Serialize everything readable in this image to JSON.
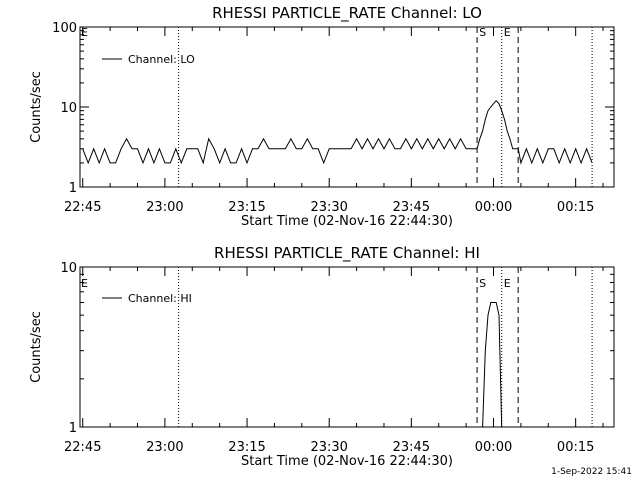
{
  "footer": {
    "timestamp": "1-Sep-2022 15:41"
  },
  "chart_data": [
    {
      "type": "line",
      "title": "RHESSI PARTICLE_RATE Channel: LO",
      "xlabel": "Start Time (02-Nov-16 22:44:30)",
      "ylabel": "Counts/sec",
      "yscale": "log",
      "ylim": [
        1,
        100
      ],
      "ytick_values": [
        1,
        10,
        100
      ],
      "ytick_labels": [
        "1",
        "10",
        "100"
      ],
      "xlim": [
        "22:44:30",
        "00:22:00"
      ],
      "xtick_values": [
        "22:45",
        "23:00",
        "23:15",
        "23:30",
        "23:45",
        "00:00",
        "00:15"
      ],
      "xtick_labels": [
        "22:45",
        "23:00",
        "23:15",
        "23:30",
        "23:45",
        "00:00",
        "00:15"
      ],
      "legend": {
        "label": "Channel: LO",
        "placement": "top-left"
      },
      "markers": [
        {
          "label": "E",
          "time": "22:44:30",
          "style": "none"
        },
        {
          "label": "",
          "time": "23:02:30",
          "style": "dotted"
        },
        {
          "label": "S",
          "time": "23:57:00",
          "style": "dashed"
        },
        {
          "label": "E",
          "time": "00:01:30",
          "style": "dotted"
        },
        {
          "label": "",
          "time": "00:04:30",
          "style": "dashed"
        },
        {
          "label": "",
          "time": "00:18:00",
          "style": "dotted"
        }
      ],
      "series": [
        {
          "name": "Channel: LO",
          "x": [
            "22:45:00",
            "22:46:00",
            "22:47:00",
            "22:48:00",
            "22:49:00",
            "22:50:00",
            "22:51:00",
            "22:52:00",
            "22:53:00",
            "22:54:00",
            "22:55:00",
            "22:56:00",
            "22:57:00",
            "22:58:00",
            "22:59:00",
            "23:00:00",
            "23:01:00",
            "23:02:00",
            "23:03:00",
            "23:04:00",
            "23:05:00",
            "23:06:00",
            "23:07:00",
            "23:08:00",
            "23:09:00",
            "23:10:00",
            "23:11:00",
            "23:12:00",
            "23:13:00",
            "23:14:00",
            "23:15:00",
            "23:16:00",
            "23:17:00",
            "23:18:00",
            "23:19:00",
            "23:20:00",
            "23:21:00",
            "23:22:00",
            "23:23:00",
            "23:24:00",
            "23:25:00",
            "23:26:00",
            "23:27:00",
            "23:28:00",
            "23:29:00",
            "23:30:00",
            "23:31:00",
            "23:32:00",
            "23:33:00",
            "23:34:00",
            "23:35:00",
            "23:36:00",
            "23:37:00",
            "23:38:00",
            "23:39:00",
            "23:40:00",
            "23:41:00",
            "23:42:00",
            "23:43:00",
            "23:44:00",
            "23:45:00",
            "23:46:00",
            "23:47:00",
            "23:48:00",
            "23:49:00",
            "23:50:00",
            "23:51:00",
            "23:52:00",
            "23:53:00",
            "23:54:00",
            "23:55:00",
            "23:56:00",
            "23:57:00",
            "23:57:30",
            "23:58:00",
            "23:58:30",
            "23:59:00",
            "23:59:30",
            "00:00:00",
            "00:00:30",
            "00:01:00",
            "00:01:30",
            "00:02:00",
            "00:02:30",
            "00:03:00",
            "00:03:30",
            "00:04:00",
            "00:04:30",
            "00:05:00",
            "00:06:00",
            "00:07:00",
            "00:08:00",
            "00:09:00",
            "00:10:00",
            "00:11:00",
            "00:12:00",
            "00:13:00",
            "00:14:00",
            "00:15:00",
            "00:16:00",
            "00:17:00",
            "00:18:00"
          ],
          "y": [
            3,
            2,
            3,
            2,
            3,
            2,
            2,
            3,
            4,
            3,
            3,
            2,
            3,
            2,
            3,
            2,
            2,
            3,
            2,
            3,
            3,
            3,
            2,
            4,
            3,
            2,
            3,
            2,
            2,
            3,
            2,
            3,
            3,
            4,
            3,
            3,
            3,
            3,
            4,
            3,
            3,
            4,
            3,
            3,
            2,
            3,
            3,
            3,
            3,
            3,
            4,
            3,
            4,
            3,
            4,
            3,
            4,
            3,
            3,
            4,
            3,
            4,
            3,
            4,
            3,
            4,
            3,
            4,
            3,
            4,
            3,
            3,
            3,
            4,
            5,
            7,
            9,
            10,
            11,
            12,
            11,
            9,
            7,
            5,
            4,
            3,
            3,
            3,
            2,
            3,
            2,
            3,
            2,
            3,
            3,
            2,
            3,
            2,
            3,
            2,
            3,
            2
          ]
        }
      ]
    },
    {
      "type": "line",
      "title": "RHESSI PARTICLE_RATE Channel: HI",
      "xlabel": "Start Time (02-Nov-16 22:44:30)",
      "ylabel": "Counts/sec",
      "yscale": "log",
      "ylim": [
        1,
        10
      ],
      "ytick_values": [
        1,
        10
      ],
      "ytick_labels": [
        "1",
        "10"
      ],
      "xlim": [
        "22:44:30",
        "00:22:00"
      ],
      "xtick_values": [
        "22:45",
        "23:00",
        "23:15",
        "23:30",
        "23:45",
        "00:00",
        "00:15"
      ],
      "xtick_labels": [
        "22:45",
        "23:00",
        "23:15",
        "23:30",
        "23:45",
        "00:00",
        "00:15"
      ],
      "legend": {
        "label": "Channel: HI",
        "placement": "top-left"
      },
      "markers": [
        {
          "label": "E",
          "time": "22:44:30",
          "style": "none"
        },
        {
          "label": "",
          "time": "23:02:30",
          "style": "dotted"
        },
        {
          "label": "S",
          "time": "23:57:00",
          "style": "dashed"
        },
        {
          "label": "E",
          "time": "00:01:30",
          "style": "dotted"
        },
        {
          "label": "",
          "time": "00:04:30",
          "style": "dashed"
        },
        {
          "label": "",
          "time": "00:18:00",
          "style": "dotted"
        }
      ],
      "series": [
        {
          "name": "Channel: HI",
          "x": [
            "23:58:00",
            "23:58:30",
            "23:59:00",
            "23:59:30",
            "00:00:00",
            "00:00:30",
            "00:01:00",
            "00:01:30"
          ],
          "y": [
            1,
            3,
            5,
            6,
            6,
            6,
            5,
            1
          ]
        }
      ]
    }
  ]
}
